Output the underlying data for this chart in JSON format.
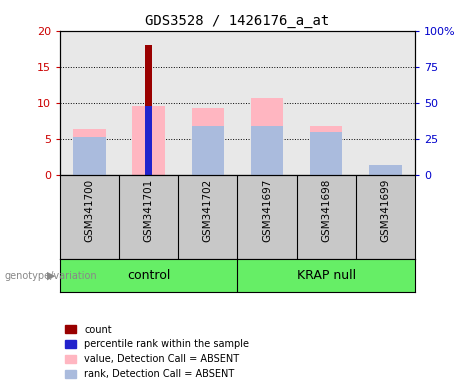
{
  "title": "GDS3528 / 1426176_a_at",
  "samples": [
    "GSM341700",
    "GSM341701",
    "GSM341702",
    "GSM341697",
    "GSM341698",
    "GSM341699"
  ],
  "group_labels": [
    "control",
    "KRAP null"
  ],
  "ylim_left": [
    0,
    20
  ],
  "ylim_right": [
    0,
    100
  ],
  "yticks_left": [
    0,
    5,
    10,
    15,
    20
  ],
  "ytick_labels_right": [
    "0",
    "25",
    "50",
    "75",
    "100%"
  ],
  "red_bars": [
    0,
    18.0,
    0,
    0,
    0,
    0
  ],
  "pink_bars": [
    6.4,
    9.5,
    9.3,
    10.7,
    6.8,
    1.2
  ],
  "blue_bars": [
    0,
    9.6,
    0,
    0,
    0,
    0
  ],
  "lavender_bars": [
    5.3,
    0,
    6.7,
    6.7,
    5.9,
    1.35
  ],
  "red_color": "#990000",
  "pink_color": "#FFB6C1",
  "blue_color": "#2222CC",
  "lavender_color": "#AABBDD",
  "axis_color_left": "#CC0000",
  "axis_color_right": "#0000CC",
  "plot_bg": "#E8E8E8",
  "label_bg": "#C8C8C8",
  "group_bg": "#66EE66",
  "legend_labels": [
    "count",
    "percentile rank within the sample",
    "value, Detection Call = ABSENT",
    "rank, Detection Call = ABSENT"
  ]
}
